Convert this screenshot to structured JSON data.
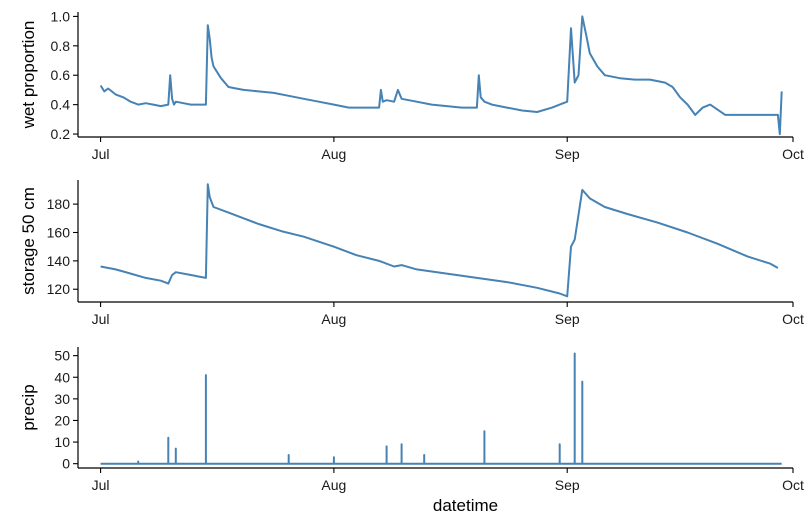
{
  "chart_data": [
    {
      "type": "line",
      "ylabel": "wet proportion",
      "xlabel": "",
      "xlim": [
        "2022-06-28",
        "2022-10-01"
      ],
      "ylim": [
        0.18,
        1.03
      ],
      "yticks": [
        0.2,
        0.4,
        0.6,
        0.8,
        1.0
      ],
      "ytick_labels": [
        "0.2",
        "0.4",
        "0.6",
        "0.8",
        "1.0"
      ],
      "xticks": [
        "2022-07-01",
        "2022-08-01",
        "2022-09-01",
        "2022-10-01"
      ],
      "xtick_labels": [
        "Jul",
        "Aug",
        "Sep",
        "Oct"
      ],
      "color": "#4682b4",
      "series": [
        {
          "x": [
            "2022-07-01",
            "2022-07-01T12:00",
            "2022-07-02",
            "2022-07-03",
            "2022-07-04",
            "2022-07-05",
            "2022-07-06",
            "2022-07-07",
            "2022-07-08",
            "2022-07-09",
            "2022-07-10",
            "2022-07-10T06:00",
            "2022-07-10T12:00",
            "2022-07-10T18:00",
            "2022-07-11",
            "2022-07-12",
            "2022-07-13",
            "2022-07-14",
            "2022-07-15",
            "2022-07-15T06:00",
            "2022-07-15T12:00",
            "2022-07-15T18:00",
            "2022-07-16",
            "2022-07-17",
            "2022-07-18",
            "2022-07-19",
            "2022-07-20",
            "2022-07-22",
            "2022-07-24",
            "2022-07-26",
            "2022-07-28",
            "2022-07-30",
            "2022-08-01",
            "2022-08-03",
            "2022-08-05",
            "2022-08-07",
            "2022-08-07T06:00",
            "2022-08-07T12:00",
            "2022-08-08",
            "2022-08-09",
            "2022-08-09T12:00",
            "2022-08-10",
            "2022-08-12",
            "2022-08-14",
            "2022-08-16",
            "2022-08-18",
            "2022-08-20",
            "2022-08-20T06:00",
            "2022-08-20T12:00",
            "2022-08-21",
            "2022-08-22",
            "2022-08-24",
            "2022-08-26",
            "2022-08-28",
            "2022-08-30",
            "2022-08-31",
            "2022-09-01",
            "2022-09-01T12:00",
            "2022-09-02",
            "2022-09-02T12:00",
            "2022-09-03",
            "2022-09-03T12:00",
            "2022-09-04",
            "2022-09-05",
            "2022-09-06",
            "2022-09-08",
            "2022-09-10",
            "2022-09-12",
            "2022-09-14",
            "2022-09-15",
            "2022-09-16",
            "2022-09-17",
            "2022-09-18",
            "2022-09-19",
            "2022-09-20",
            "2022-09-22",
            "2022-09-24",
            "2022-09-26",
            "2022-09-28",
            "2022-09-29",
            "2022-09-29T06:00",
            "2022-09-29T12:00"
          ],
          "y": [
            0.53,
            0.49,
            0.51,
            0.47,
            0.45,
            0.42,
            0.4,
            0.41,
            0.4,
            0.39,
            0.4,
            0.6,
            0.44,
            0.4,
            0.42,
            0.41,
            0.4,
            0.4,
            0.4,
            0.94,
            0.85,
            0.72,
            0.66,
            0.58,
            0.52,
            0.51,
            0.5,
            0.49,
            0.48,
            0.46,
            0.44,
            0.42,
            0.4,
            0.38,
            0.38,
            0.38,
            0.5,
            0.42,
            0.43,
            0.42,
            0.5,
            0.44,
            0.42,
            0.4,
            0.39,
            0.38,
            0.38,
            0.6,
            0.45,
            0.42,
            0.4,
            0.38,
            0.36,
            0.35,
            0.38,
            0.4,
            0.42,
            0.92,
            0.55,
            0.6,
            1.0,
            0.88,
            0.75,
            0.66,
            0.6,
            0.58,
            0.57,
            0.57,
            0.55,
            0.52,
            0.45,
            0.4,
            0.33,
            0.38,
            0.4,
            0.33,
            0.33,
            0.33,
            0.33,
            0.33,
            0.2,
            0.49
          ]
        }
      ]
    },
    {
      "type": "line",
      "ylabel": "storage 50 cm",
      "xlabel": "",
      "xlim": [
        "2022-06-28",
        "2022-10-01"
      ],
      "ylim": [
        111,
        197
      ],
      "yticks": [
        120,
        140,
        160,
        180
      ],
      "ytick_labels": [
        "120",
        "140",
        "160",
        "180"
      ],
      "xticks": [
        "2022-07-01",
        "2022-08-01",
        "2022-09-01",
        "2022-10-01"
      ],
      "xtick_labels": [
        "Jul",
        "Aug",
        "Sep",
        "Oct"
      ],
      "color": "#4682b4",
      "series": [
        {
          "x": [
            "2022-07-01",
            "2022-07-03",
            "2022-07-05",
            "2022-07-07",
            "2022-07-09",
            "2022-07-10",
            "2022-07-10T12:00",
            "2022-07-11",
            "2022-07-13",
            "2022-07-14",
            "2022-07-15",
            "2022-07-15T06:00",
            "2022-07-15T12:00",
            "2022-07-16",
            "2022-07-18",
            "2022-07-20",
            "2022-07-22",
            "2022-07-25",
            "2022-07-28",
            "2022-08-01",
            "2022-08-04",
            "2022-08-07",
            "2022-08-09",
            "2022-08-10",
            "2022-08-12",
            "2022-08-16",
            "2022-08-20",
            "2022-08-24",
            "2022-08-28",
            "2022-08-31",
            "2022-09-01",
            "2022-09-01T12:00",
            "2022-09-02",
            "2022-09-03",
            "2022-09-04",
            "2022-09-06",
            "2022-09-09",
            "2022-09-13",
            "2022-09-17",
            "2022-09-21",
            "2022-09-25",
            "2022-09-28",
            "2022-09-29"
          ],
          "y": [
            136,
            134,
            131,
            128,
            126,
            124,
            130,
            132,
            130,
            129,
            128,
            194,
            185,
            178,
            174,
            170,
            166,
            161,
            157,
            150,
            144,
            140,
            136,
            137,
            134,
            131,
            128,
            125,
            121,
            117,
            115,
            150,
            155,
            190,
            184,
            178,
            173,
            167,
            160,
            152,
            143,
            138,
            135
          ]
        }
      ]
    },
    {
      "type": "line",
      "ylabel": "precip",
      "xlabel": "datetime",
      "xlim": [
        "2022-06-28",
        "2022-10-01"
      ],
      "ylim": [
        -2,
        54
      ],
      "yticks": [
        0,
        10,
        20,
        30,
        40,
        50
      ],
      "ytick_labels": [
        "0",
        "10",
        "20",
        "30",
        "40",
        "50"
      ],
      "xticks": [
        "2022-07-01",
        "2022-08-01",
        "2022-09-01",
        "2022-10-01"
      ],
      "xtick_labels": [
        "Jul",
        "Aug",
        "Sep",
        "Oct"
      ],
      "color": "#4682b4",
      "series": [
        {
          "x": [
            "2022-07-06",
            "2022-07-10",
            "2022-07-11",
            "2022-07-15",
            "2022-07-26",
            "2022-08-01",
            "2022-08-08",
            "2022-08-10",
            "2022-08-13",
            "2022-08-21",
            "2022-08-31",
            "2022-09-02",
            "2022-09-03"
          ],
          "y": [
            1,
            12,
            7,
            41,
            4,
            3,
            8,
            9,
            4,
            15,
            9,
            51,
            38
          ]
        }
      ]
    }
  ]
}
